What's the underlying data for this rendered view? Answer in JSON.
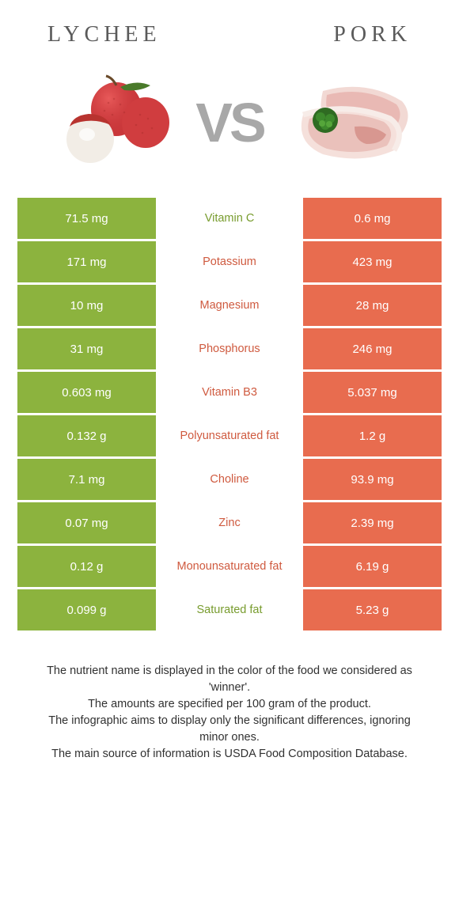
{
  "header": {
    "left": "Lychee",
    "right": "Pork"
  },
  "vs": "VS",
  "colors": {
    "left_bg": "#8cb33e",
    "right_bg": "#e86c4f",
    "left_winner_text": "#789c2e",
    "right_winner_text": "#cf5a3f",
    "title": "#5a5a5a",
    "vs": "#a8a8a8",
    "footer": "#313131",
    "cell_text": "#ffffff"
  },
  "rows": [
    {
      "left": "71.5 mg",
      "label": "Vitamin C",
      "right": "0.6 mg",
      "winner": "left"
    },
    {
      "left": "171 mg",
      "label": "Potassium",
      "right": "423 mg",
      "winner": "right"
    },
    {
      "left": "10 mg",
      "label": "Magnesium",
      "right": "28 mg",
      "winner": "right"
    },
    {
      "left": "31 mg",
      "label": "Phosphorus",
      "right": "246 mg",
      "winner": "right"
    },
    {
      "left": "0.603 mg",
      "label": "Vitamin B3",
      "right": "5.037 mg",
      "winner": "right"
    },
    {
      "left": "0.132 g",
      "label": "Polyunsaturated fat",
      "right": "1.2 g",
      "winner": "right"
    },
    {
      "left": "7.1 mg",
      "label": "Choline",
      "right": "93.9 mg",
      "winner": "right"
    },
    {
      "left": "0.07 mg",
      "label": "Zinc",
      "right": "2.39 mg",
      "winner": "right"
    },
    {
      "left": "0.12 g",
      "label": "Monounsaturated fat",
      "right": "6.19 g",
      "winner": "right"
    },
    {
      "left": "0.099 g",
      "label": "Saturated fat",
      "right": "5.23 g",
      "winner": "left"
    }
  ],
  "footer": {
    "line1": "The nutrient name is displayed in the color of the food we considered as 'winner'.",
    "line2": "The amounts are specified per 100 gram of the product.",
    "line3": "The infographic aims to display only the significant differences, ignoring minor ones.",
    "line4": "The main source of information is USDA Food Composition Database."
  }
}
